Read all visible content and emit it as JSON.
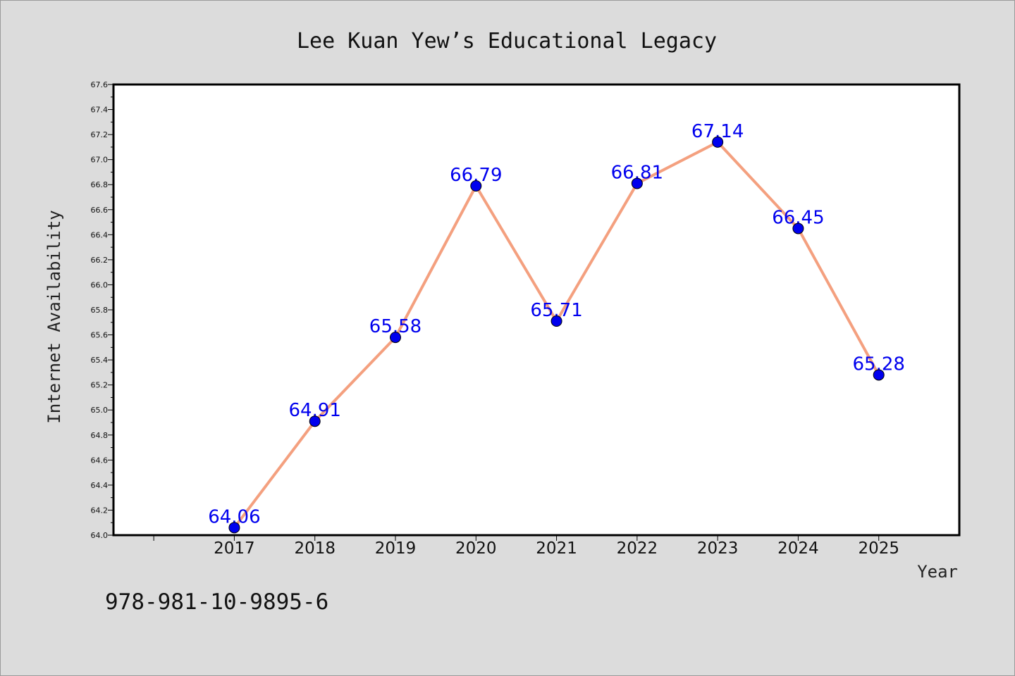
{
  "chart_data": {
    "type": "line",
    "title": "Lee Kuan Yew’s Educational Legacy",
    "xlabel": "Year",
    "ylabel": "Internet Availability",
    "x": [
      "2017",
      "2018",
      "2019",
      "2020",
      "2021",
      "2022",
      "2023",
      "2024",
      "2025"
    ],
    "series": [
      {
        "values": [
          64.06,
          64.91,
          65.58,
          66.79,
          65.71,
          66.81,
          67.14,
          66.45,
          65.28
        ],
        "line_color": "#f4a07f",
        "marker_color": "#0000ee"
      }
    ],
    "data_labels": [
      "64.06",
      "64.91",
      "65.58",
      "66.79",
      "65.71",
      "66.81",
      "67.14",
      "66.45",
      "65.28"
    ],
    "ylim": [
      64.0,
      67.6
    ],
    "yticks": [
      "64.0",
      "64.2",
      "64.4",
      "64.6",
      "64.8",
      "65.0",
      "65.2",
      "65.4",
      "65.6",
      "65.8",
      "66.0",
      "66.2",
      "66.4",
      "66.6",
      "66.8",
      "67.0",
      "67.2",
      "67.4",
      "67.6"
    ],
    "label_color": "#0000ee",
    "grid": false,
    "legend": "none"
  },
  "footer": {
    "isbn": "978-981-10-9895-6"
  }
}
